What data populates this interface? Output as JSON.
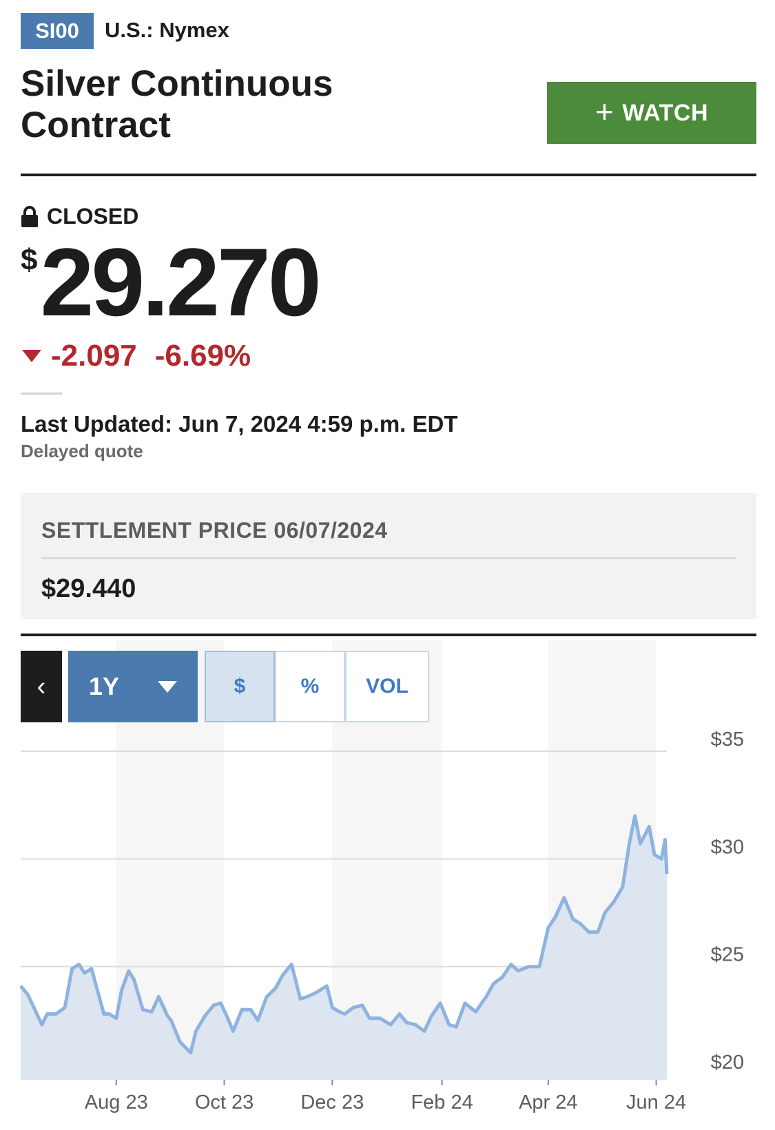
{
  "header": {
    "ticker": "SI00",
    "exchange": "U.S.: Nymex",
    "title": "Silver Continuous Contract",
    "watch_label": "WATCH"
  },
  "quote": {
    "status": "CLOSED",
    "currency_symbol": "$",
    "price": "29.270",
    "change": "-2.097",
    "change_percent": "-6.69%",
    "direction": "down",
    "last_updated": "Last Updated: Jun 7, 2024 4:59 p.m. EDT",
    "delayed": "Delayed quote"
  },
  "settlement": {
    "label": "SETTLEMENT PRICE 06/07/2024",
    "value": "$29.440"
  },
  "chart_controls": {
    "back": "‹",
    "range": "1Y",
    "tabs": [
      "$",
      "%",
      "VOL"
    ],
    "selected_tab": "$"
  },
  "colors": {
    "badge": "#4a7aae",
    "watch": "#4b8b3b",
    "negative": "#b3282d",
    "line": "#8fb3df",
    "area": "#dde6f0"
  },
  "chart_data": {
    "type": "area",
    "title": "",
    "xlabel": "",
    "ylabel": "",
    "x_ticks": [
      "Aug 23",
      "Oct 23",
      "Dec 23",
      "Feb 24",
      "Apr 24",
      "Jun 24"
    ],
    "y_ticks": [
      "$35",
      "$30",
      "$25",
      "$20"
    ],
    "ylim": [
      20,
      35
    ],
    "xlim": [
      "2023-06-08",
      "2024-06-07"
    ],
    "grid": true,
    "series": [
      {
        "x": [
          "2023-06-08",
          "2023-06-12",
          "2023-06-16",
          "2023-06-20",
          "2023-06-23",
          "2023-06-28",
          "2023-07-03",
          "2023-07-07",
          "2023-07-11",
          "2023-07-14",
          "2023-07-18",
          "2023-07-21",
          "2023-07-25",
          "2023-07-28",
          "2023-08-01",
          "2023-08-04",
          "2023-08-08",
          "2023-08-11",
          "2023-08-16",
          "2023-08-21",
          "2023-08-25",
          "2023-08-30",
          "2023-09-01",
          "2023-09-06",
          "2023-09-12",
          "2023-09-15",
          "2023-09-20",
          "2023-09-25",
          "2023-09-29",
          "2023-10-03",
          "2023-10-06",
          "2023-10-11",
          "2023-10-16",
          "2023-10-20",
          "2023-10-25",
          "2023-10-30",
          "2023-11-03",
          "2023-11-08",
          "2023-11-13",
          "2023-11-17",
          "2023-11-22",
          "2023-11-28",
          "2023-12-01",
          "2023-12-05",
          "2023-12-08",
          "2023-12-13",
          "2023-12-18",
          "2023-12-22",
          "2023-12-28",
          "2024-01-03",
          "2024-01-08",
          "2024-01-12",
          "2024-01-17",
          "2024-01-22",
          "2024-01-26",
          "2024-01-31",
          "2024-02-05",
          "2024-02-09",
          "2024-02-14",
          "2024-02-20",
          "2024-02-26",
          "2024-03-01",
          "2024-03-06",
          "2024-03-11",
          "2024-03-15",
          "2024-03-21",
          "2024-03-27",
          "2024-04-01",
          "2024-04-05",
          "2024-04-10",
          "2024-04-15",
          "2024-04-19",
          "2024-04-24",
          "2024-04-29",
          "2024-05-03",
          "2024-05-08",
          "2024-05-13",
          "2024-05-17",
          "2024-05-20",
          "2024-05-23",
          "2024-05-28",
          "2024-05-31",
          "2024-06-04",
          "2024-06-06",
          "2024-06-07"
        ],
        "y": [
          24.1,
          23.7,
          23.0,
          22.3,
          22.8,
          22.8,
          23.1,
          24.9,
          25.1,
          24.7,
          24.9,
          24.0,
          22.8,
          22.8,
          22.6,
          23.9,
          24.8,
          24.4,
          23.0,
          22.9,
          23.6,
          22.7,
          22.5,
          21.5,
          21.0,
          22.0,
          22.7,
          23.2,
          23.3,
          22.6,
          22.0,
          23.0,
          23.0,
          22.5,
          23.6,
          24.0,
          24.6,
          25.1,
          23.5,
          23.6,
          23.8,
          24.1,
          23.1,
          22.9,
          22.8,
          23.1,
          23.2,
          22.6,
          22.6,
          22.3,
          22.8,
          22.4,
          22.3,
          22.0,
          22.7,
          23.3,
          22.3,
          22.2,
          23.3,
          22.9,
          23.6,
          24.2,
          24.5,
          25.1,
          24.8,
          25.0,
          25.0,
          26.8,
          27.3,
          28.2,
          27.2,
          27.0,
          26.6,
          26.6,
          27.5,
          28.0,
          28.7,
          30.8,
          32.0,
          30.7,
          31.5,
          30.2,
          30.0,
          30.9,
          29.3
        ]
      }
    ]
  }
}
